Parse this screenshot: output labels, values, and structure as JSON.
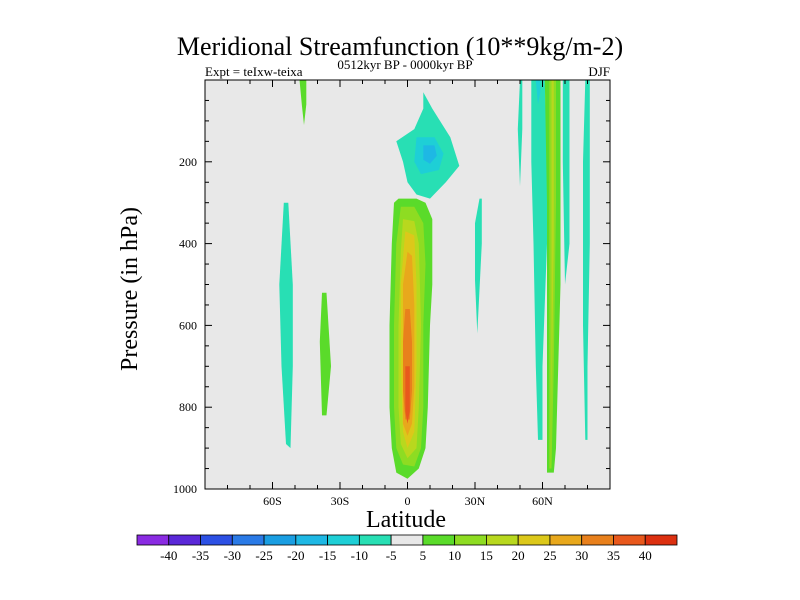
{
  "chart_data": {
    "type": "heatmap",
    "title": "Meridional Streamfunction (10**9kg/m-2)",
    "subtitle_left": "Expt = teIxw-teixa",
    "subtitle_center": "0512kyr BP - 0000kyr BP",
    "subtitle_right": "DJF",
    "xlabel": "Latitude",
    "ylabel": "Pressure (in hPa)",
    "xlim": [
      -90,
      90
    ],
    "ylim": [
      0,
      1000
    ],
    "y_inverted": true,
    "grid": false,
    "x_ticks": [
      {
        "value": -60,
        "label": "60S"
      },
      {
        "value": -30,
        "label": "30S"
      },
      {
        "value": 0,
        "label": "0"
      },
      {
        "value": 30,
        "label": "30N"
      },
      {
        "value": 60,
        "label": "60N"
      }
    ],
    "y_ticks": [
      {
        "value": 200,
        "label": "200"
      },
      {
        "value": 400,
        "label": "400"
      },
      {
        "value": 600,
        "label": "600"
      },
      {
        "value": 800,
        "label": "800"
      },
      {
        "value": 1000,
        "label": "1000"
      }
    ],
    "background_color": "#e8e8e8",
    "colorbar": {
      "labels": [
        "-40",
        "-35",
        "-30",
        "-25",
        "-20",
        "-15",
        "-10",
        "-5",
        "5",
        "10",
        "15",
        "20",
        "25",
        "30",
        "35",
        "40"
      ],
      "colors": [
        "#8a2be2",
        "#5a28d8",
        "#2c50e4",
        "#2a7ae6",
        "#1a9ee2",
        "#1eb8e4",
        "#1ecfd6",
        "#28dfb4",
        "#e8e8e8",
        "#5adb2a",
        "#8edc22",
        "#b8d81e",
        "#dcc81a",
        "#e8a81c",
        "#e8801c",
        "#e8581c",
        "#dc3010"
      ]
    },
    "contours": [
      {
        "name": "nh-hadley-cell",
        "level": 5,
        "color": "#5adb2a",
        "points": [
          [
            -4,
            290
          ],
          [
            4,
            290
          ],
          [
            8,
            300
          ],
          [
            11,
            340
          ],
          [
            11,
            500
          ],
          [
            10,
            600
          ],
          [
            9,
            800
          ],
          [
            8,
            900
          ],
          [
            5,
            950
          ],
          [
            0,
            975
          ],
          [
            -5,
            960
          ],
          [
            -7,
            900
          ],
          [
            -8,
            800
          ],
          [
            -8,
            600
          ],
          [
            -7,
            400
          ],
          [
            -6,
            300
          ]
        ]
      },
      {
        "name": "nh-hadley-cell",
        "level": 10,
        "color": "#8edc22",
        "points": [
          [
            -3,
            310
          ],
          [
            3,
            310
          ],
          [
            7,
            350
          ],
          [
            8,
            450
          ],
          [
            7,
            600
          ],
          [
            7,
            800
          ],
          [
            6,
            900
          ],
          [
            3,
            945
          ],
          [
            -2,
            940
          ],
          [
            -5,
            900
          ],
          [
            -6,
            800
          ],
          [
            -6,
            600
          ],
          [
            -5,
            400
          ]
        ]
      },
      {
        "name": "nh-hadley-cell",
        "level": 15,
        "color": "#b8d81e",
        "points": [
          [
            -2,
            340
          ],
          [
            3,
            345
          ],
          [
            5,
            400
          ],
          [
            6,
            600
          ],
          [
            5,
            800
          ],
          [
            4,
            900
          ],
          [
            0,
            925
          ],
          [
            -3,
            890
          ],
          [
            -4,
            800
          ],
          [
            -4,
            600
          ],
          [
            -3,
            420
          ]
        ]
      },
      {
        "name": "nh-hadley-cell",
        "level": 20,
        "color": "#dcc81a",
        "points": [
          [
            -1,
            370
          ],
          [
            3,
            380
          ],
          [
            4,
            500
          ],
          [
            4,
            700
          ],
          [
            3,
            860
          ],
          [
            0,
            900
          ],
          [
            -2,
            860
          ],
          [
            -3,
            700
          ],
          [
            -3,
            500
          ]
        ]
      },
      {
        "name": "nh-hadley-cell",
        "level": 25,
        "color": "#e8a81c",
        "points": [
          [
            0,
            420
          ],
          [
            2,
            430
          ],
          [
            3,
            550
          ],
          [
            3,
            750
          ],
          [
            2,
            840
          ],
          [
            0,
            870
          ],
          [
            -2,
            840
          ],
          [
            -2,
            700
          ],
          [
            -2,
            500
          ]
        ]
      },
      {
        "name": "nh-hadley-cell",
        "level": 30,
        "color": "#e8801c",
        "points": [
          [
            -1,
            560
          ],
          [
            1,
            560
          ],
          [
            2,
            640
          ],
          [
            2,
            760
          ],
          [
            1,
            830
          ],
          [
            -1,
            830
          ],
          [
            -2,
            760
          ],
          [
            -2,
            640
          ]
        ]
      },
      {
        "name": "nh-hadley-cell",
        "level": 35,
        "color": "#e8581c",
        "points": [
          [
            -1,
            700
          ],
          [
            1,
            700
          ],
          [
            1,
            810
          ],
          [
            0,
            840
          ],
          [
            -1,
            810
          ]
        ]
      },
      {
        "name": "upper-negative-cell",
        "level": -5,
        "color": "#28dfb4",
        "points": [
          [
            7,
            30
          ],
          [
            11,
            70
          ],
          [
            19,
            140
          ],
          [
            23,
            210
          ],
          [
            17,
            250
          ],
          [
            10,
            290
          ],
          [
            4,
            280
          ],
          [
            0,
            250
          ],
          [
            -2,
            200
          ],
          [
            -5,
            150
          ],
          [
            3,
            120
          ],
          [
            7,
            70
          ]
        ]
      },
      {
        "name": "upper-negative-cell",
        "level": -10,
        "color": "#1ecfd6",
        "points": [
          [
            4,
            140
          ],
          [
            12,
            140
          ],
          [
            16,
            180
          ],
          [
            14,
            220
          ],
          [
            6,
            230
          ],
          [
            3,
            200
          ]
        ]
      },
      {
        "name": "upper-negative-cell",
        "level": -15,
        "color": "#1eb8e4",
        "points": [
          [
            7,
            160
          ],
          [
            12,
            160
          ],
          [
            13,
            185
          ],
          [
            10,
            205
          ],
          [
            7,
            195
          ]
        ]
      },
      {
        "name": "sh-midlat-band",
        "level": -5,
        "color": "#28dfb4",
        "points": [
          [
            -55,
            300
          ],
          [
            -53,
            300
          ],
          [
            -51,
            500
          ],
          [
            -51,
            700
          ],
          [
            -52,
            900
          ],
          [
            -54,
            890
          ],
          [
            -56,
            700
          ],
          [
            -57,
            500
          ]
        ]
      },
      {
        "name": "sh-polar-top",
        "level": 5,
        "color": "#5adb2a",
        "points": [
          [
            -48,
            0
          ],
          [
            -45,
            0
          ],
          [
            -45,
            60
          ],
          [
            -46,
            110
          ],
          [
            -47,
            60
          ]
        ]
      },
      {
        "name": "sh-midlat-positive",
        "level": 5,
        "color": "#5adb2a",
        "points": [
          [
            -38,
            520
          ],
          [
            -36,
            520
          ],
          [
            -34,
            700
          ],
          [
            -36,
            820
          ],
          [
            -38,
            820
          ],
          [
            -39,
            640
          ]
        ]
      },
      {
        "name": "nh-subtropic-band",
        "level": -5,
        "color": "#28dfb4",
        "points": [
          [
            32,
            290
          ],
          [
            33,
            290
          ],
          [
            33,
            400
          ],
          [
            31,
            620
          ],
          [
            30,
            490
          ],
          [
            30,
            350
          ]
        ]
      },
      {
        "name": "nh-midlat-band",
        "level": -5,
        "color": "#28dfb4",
        "points": [
          [
            50,
            0
          ],
          [
            51,
            0
          ],
          [
            51,
            120
          ],
          [
            50,
            260
          ],
          [
            49,
            120
          ]
        ]
      },
      {
        "name": "nh-midlat-band",
        "level": -5,
        "color": "#28dfb4",
        "points": [
          [
            55,
            0
          ],
          [
            61,
            0
          ],
          [
            62,
            200
          ],
          [
            62,
            400
          ],
          [
            60,
            700
          ],
          [
            60,
            880
          ],
          [
            58,
            880
          ],
          [
            57,
            700
          ],
          [
            56,
            400
          ],
          [
            55,
            200
          ]
        ]
      },
      {
        "name": "nh-midlat-band",
        "level": -10,
        "color": "#1ecfd6",
        "points": [
          [
            57,
            0
          ],
          [
            59,
            0
          ],
          [
            59,
            30
          ],
          [
            58,
            60
          ]
        ]
      },
      {
        "name": "nh-polar-band",
        "level": 5,
        "color": "#5adb2a",
        "points": [
          [
            61,
            0
          ],
          [
            68,
            0
          ],
          [
            68,
            200
          ],
          [
            68,
            500
          ],
          [
            66,
            900
          ],
          [
            65,
            960
          ],
          [
            62,
            960
          ],
          [
            62,
            700
          ],
          [
            62,
            300
          ]
        ]
      },
      {
        "name": "nh-polar-band",
        "level": 10,
        "color": "#8edc22",
        "points": [
          [
            63,
            0
          ],
          [
            66,
            0
          ],
          [
            66,
            300
          ],
          [
            65,
            700
          ],
          [
            64,
            950
          ],
          [
            63,
            950
          ],
          [
            63,
            600
          ]
        ]
      },
      {
        "name": "nh-polar-band",
        "level": 15,
        "color": "#b8d81e",
        "points": [
          [
            64,
            0
          ],
          [
            65,
            0
          ],
          [
            65,
            400
          ],
          [
            64,
            800
          ],
          [
            64,
            400
          ]
        ]
      },
      {
        "name": "nh-polar-edge",
        "level": -5,
        "color": "#28dfb4",
        "points": [
          [
            69,
            0
          ],
          [
            72,
            0
          ],
          [
            72,
            400
          ],
          [
            70,
            500
          ],
          [
            69,
            200
          ]
        ]
      },
      {
        "name": "nh-high-lat",
        "level": -5,
        "color": "#28dfb4",
        "points": [
          [
            79,
            0
          ],
          [
            81,
            0
          ],
          [
            81,
            400
          ],
          [
            80,
            700
          ],
          [
            80,
            880
          ],
          [
            79,
            880
          ],
          [
            78,
            600
          ],
          [
            78,
            200
          ]
        ]
      }
    ]
  }
}
